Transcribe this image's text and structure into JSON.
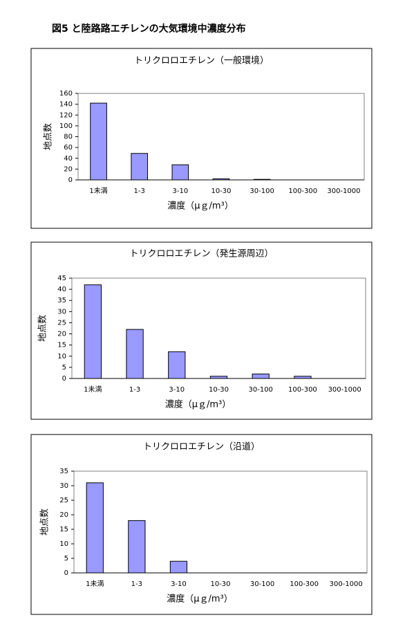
{
  "title": "図5 と陸路路エチレンの大気環境中濃度分布",
  "chart_data": [
    {
      "type": "bar",
      "title": "トリクロロエチレン（一般環境）",
      "x_label": "濃度（μｇ/m³）",
      "y_label": "地点数",
      "categories": [
        "1未満",
        "1-3",
        "3-10",
        "10-30",
        "30-100",
        "100-300",
        "300-1000"
      ],
      "values": [
        142,
        49,
        28,
        2,
        1,
        0,
        0
      ],
      "color": "#9999ff",
      "ylim": [
        0,
        160
      ],
      "yticks": [
        0,
        20,
        40,
        60,
        80,
        100,
        120,
        140,
        160
      ]
    },
    {
      "type": "bar",
      "title": "トリクロロエチレン（発生源周辺）",
      "x_label": "濃度（μｇ/m³）",
      "y_label": "地点数",
      "categories": [
        "1未満",
        "1-3",
        "3-10",
        "10-30",
        "30-100",
        "100-300",
        "300-1000"
      ],
      "values": [
        42,
        22,
        12,
        1,
        2,
        1,
        0
      ],
      "color": "#9999ff",
      "ylim": [
        0,
        45
      ],
      "yticks": [
        0,
        5,
        10,
        15,
        20,
        25,
        30,
        35,
        40,
        45
      ]
    },
    {
      "type": "bar",
      "title": "トリクロロエチレン（沿道）",
      "x_label": "濃度（μｇ/m³）",
      "y_label": "地点数",
      "categories": [
        "1未満",
        "1-3",
        "3-10",
        "10-30",
        "30-100",
        "100-300",
        "300-1000"
      ],
      "values": [
        31,
        18,
        4,
        0,
        0,
        0,
        0
      ],
      "color": "#9999ff",
      "ylim": [
        0,
        35
      ],
      "yticks": [
        0,
        5,
        10,
        15,
        20,
        25,
        30,
        35
      ]
    }
  ]
}
